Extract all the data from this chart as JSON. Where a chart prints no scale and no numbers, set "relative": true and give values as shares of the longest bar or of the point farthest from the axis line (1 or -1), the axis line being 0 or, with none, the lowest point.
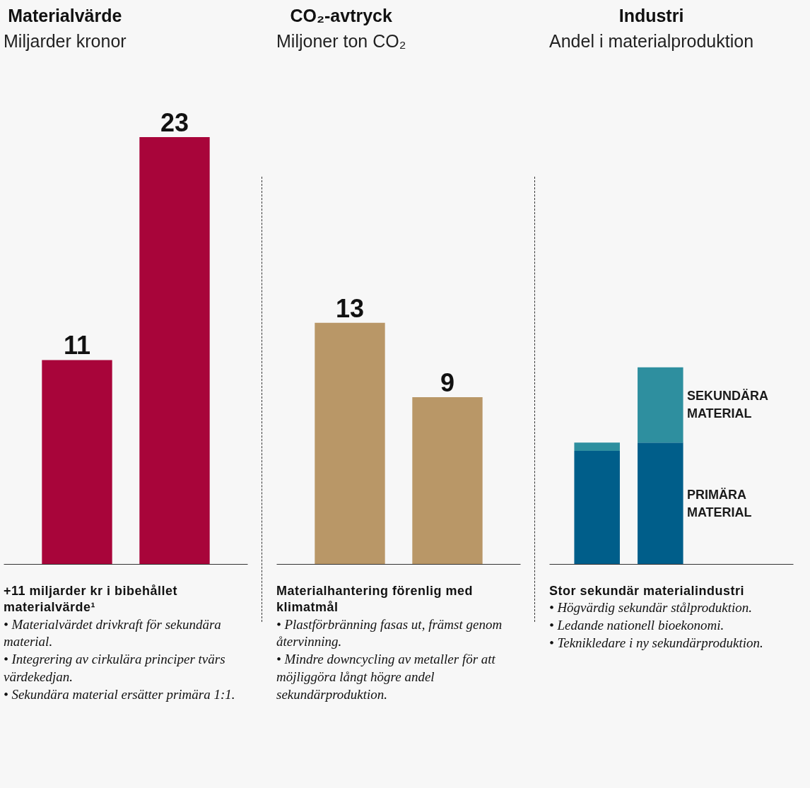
{
  "chart_data": [
    {
      "type": "bar",
      "title": "Materialvärde",
      "subtitle": "Miljarder kronor",
      "categories": [
        null,
        null
      ],
      "values": [
        11,
        23
      ],
      "color": "#a8053a",
      "data_labels": true,
      "tick_labels": false,
      "annotations": [
        "+11 miljarder kr i bibehållet materialvärde¹",
        "• Materialvärdet drivkraft för sekundära material.",
        "• Integrering av cirkulära principer tvärs värdekedjan.",
        "• Sekundära material ersätter primära 1:1."
      ]
    },
    {
      "type": "bar",
      "title": "CO₂-avtryck",
      "subtitle": "Miljoner ton CO₂",
      "categories": [
        null,
        null
      ],
      "values": [
        13,
        9
      ],
      "color": "#b99767",
      "data_labels": true,
      "tick_labels": false,
      "annotations": [
        "Materialhantering förenlig med klimatmål",
        "• Plastförbränning fasas ut, främst genom återvinning.",
        "• Mindre downcycling av metaller för att möjliggöra långt högre andel sekundärproduktion."
      ]
    },
    {
      "type": "bar",
      "title": "Industri",
      "subtitle": "Andel i materialproduktion",
      "categories": [
        null,
        null
      ],
      "stacked": true,
      "relative": true,
      "legend": "right",
      "tick_labels": false,
      "series": [
        {
          "name": "PRIMÄRA MATERIAL",
          "color": "#005e8a",
          "values": [
            0.576,
            0.618
          ]
        },
        {
          "name": "SEKUNDÄRA MATERIAL",
          "color": "#2e8f9f",
          "values": [
            0.042,
            0.382
          ]
        }
      ],
      "annotations": [
        "Stor sekundär materialindustri",
        "• Högvärdig sekundär stålproduktion.",
        "• Ledande nationell bioekonomi.",
        "• Teknikledare i ny sekundärproduktion."
      ]
    }
  ]
}
